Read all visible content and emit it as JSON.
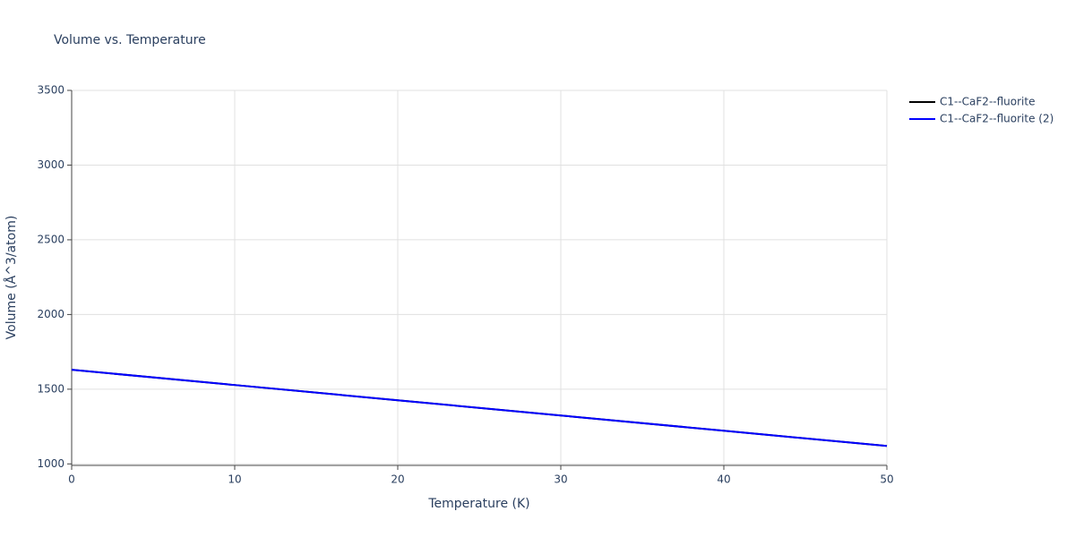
{
  "chart_data": {
    "type": "line",
    "title": "Volume vs. Temperature",
    "x_label": "Temperature (K)",
    "y_label": "Volume (Å^3/atom)",
    "x": [
      0,
      10,
      20,
      30,
      40,
      50
    ],
    "series": [
      {
        "name": "C1--CaF2--fluorite",
        "color": "#000000",
        "values": [
          1630,
          1528,
          1426,
          1324,
          1222,
          1120
        ]
      },
      {
        "name": "C1--CaF2--fluorite (2)",
        "color": "#0000ff",
        "values": [
          1630,
          1528,
          1426,
          1324,
          1222,
          1120
        ]
      }
    ],
    "xlim": [
      0,
      50
    ],
    "xticks": [
      0,
      10,
      20,
      30,
      40,
      50
    ],
    "ylim": [
      990,
      3500
    ],
    "yticks": [
      1000,
      1500,
      2000,
      2500,
      3000,
      3500
    ],
    "grid": true,
    "legend": "right"
  }
}
